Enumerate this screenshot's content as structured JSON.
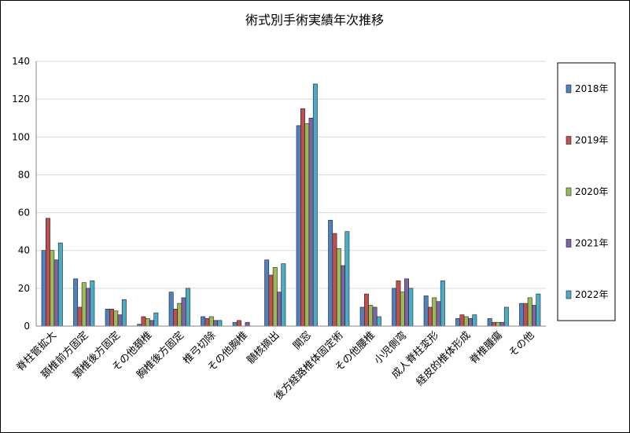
{
  "chart_data": {
    "type": "bar",
    "title": "術式別手術実績年次推移",
    "xlabel": "",
    "ylabel": "",
    "ylim": [
      0,
      140
    ],
    "yticks": [
      0,
      20,
      40,
      60,
      80,
      100,
      120,
      140
    ],
    "grid": true,
    "legend_position": "right",
    "categories": [
      "脊柱管拡大",
      "頚椎前方固定",
      "頚椎後方固定",
      "その他頚椎",
      "胸椎後方固定",
      "椎弓切除",
      "その他胸椎",
      "髄核摘出",
      "開窓",
      "後方経路椎体固定術",
      "その他腰椎",
      "小児側弯",
      "成人脊柱変形",
      "経皮的椎体形成",
      "脊椎腫瘍",
      "その他"
    ],
    "series": [
      {
        "name": "2018年",
        "color": "#4F81BD",
        "values": [
          40,
          25,
          9,
          1,
          18,
          5,
          2,
          35,
          106,
          56,
          10,
          20,
          16,
          4,
          4,
          12
        ]
      },
      {
        "name": "2019年",
        "color": "#C0504D",
        "values": [
          57,
          10,
          9,
          5,
          9,
          4,
          3,
          27,
          115,
          49,
          17,
          24,
          10,
          6,
          2,
          12
        ]
      },
      {
        "name": "2020年",
        "color": "#9BBB59",
        "values": [
          40,
          23,
          8,
          4,
          12,
          5,
          0,
          31,
          107,
          41,
          11,
          18,
          15,
          5,
          2,
          15
        ]
      },
      {
        "name": "2021年",
        "color": "#8064A2",
        "values": [
          35,
          20,
          6,
          3,
          15,
          3,
          2,
          18,
          110,
          32,
          10,
          25,
          13,
          4,
          2,
          11
        ]
      },
      {
        "name": "2022年",
        "color": "#4BACC6",
        "values": [
          44,
          24,
          14,
          7,
          20,
          3,
          0,
          33,
          128,
          50,
          5,
          20,
          24,
          6,
          10,
          17
        ]
      }
    ]
  }
}
